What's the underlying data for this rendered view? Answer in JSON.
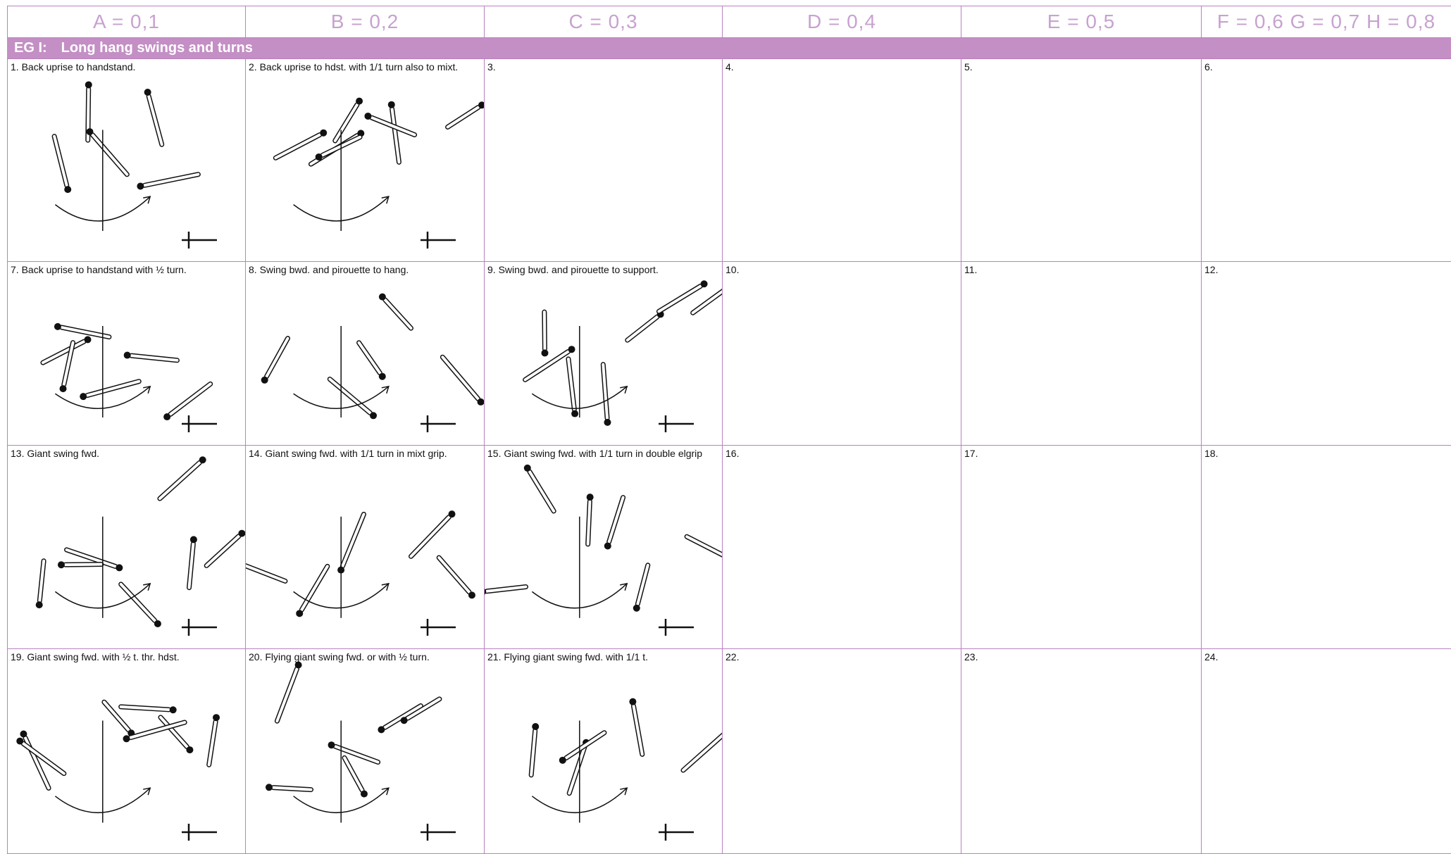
{
  "header": {
    "columns": [
      "A = 0,1",
      "B = 0,2",
      "C = 0,3",
      "D = 0,4",
      "E = 0,5",
      "F = 0,6 G = 0,7 H = 0,8"
    ]
  },
  "group": {
    "code": "EG I:",
    "title": "Long hang swings and turns"
  },
  "table": {
    "rows": [
      [
        "1.  Back uprise to handstand.",
        "2. Back uprise to hdst. with 1/1 turn also to mixt.",
        "3.",
        "4.",
        "5.",
        "6."
      ],
      [
        "7.  Back uprise to handstand with ½ turn.",
        "8. Swing bwd. and pirouette to hang.",
        "9.  Swing bwd. and pirouette to support.",
        "10.",
        "11.",
        "12."
      ],
      [
        "13.  Giant swing fwd.",
        "14.  Giant swing fwd. with 1/1 turn in mixt grip.",
        "15. Giant swing fwd. with 1/1 turn in double elgrip",
        "16.",
        "17.",
        "18."
      ],
      [
        "19.  Giant swing fwd. with ½ t. thr. hdst.",
        "20.  Flying giant swing fwd. or with ½ turn.",
        "21.  Flying giant swing fwd. with 1/1 t.",
        "22.",
        "23.",
        "24."
      ]
    ]
  }
}
